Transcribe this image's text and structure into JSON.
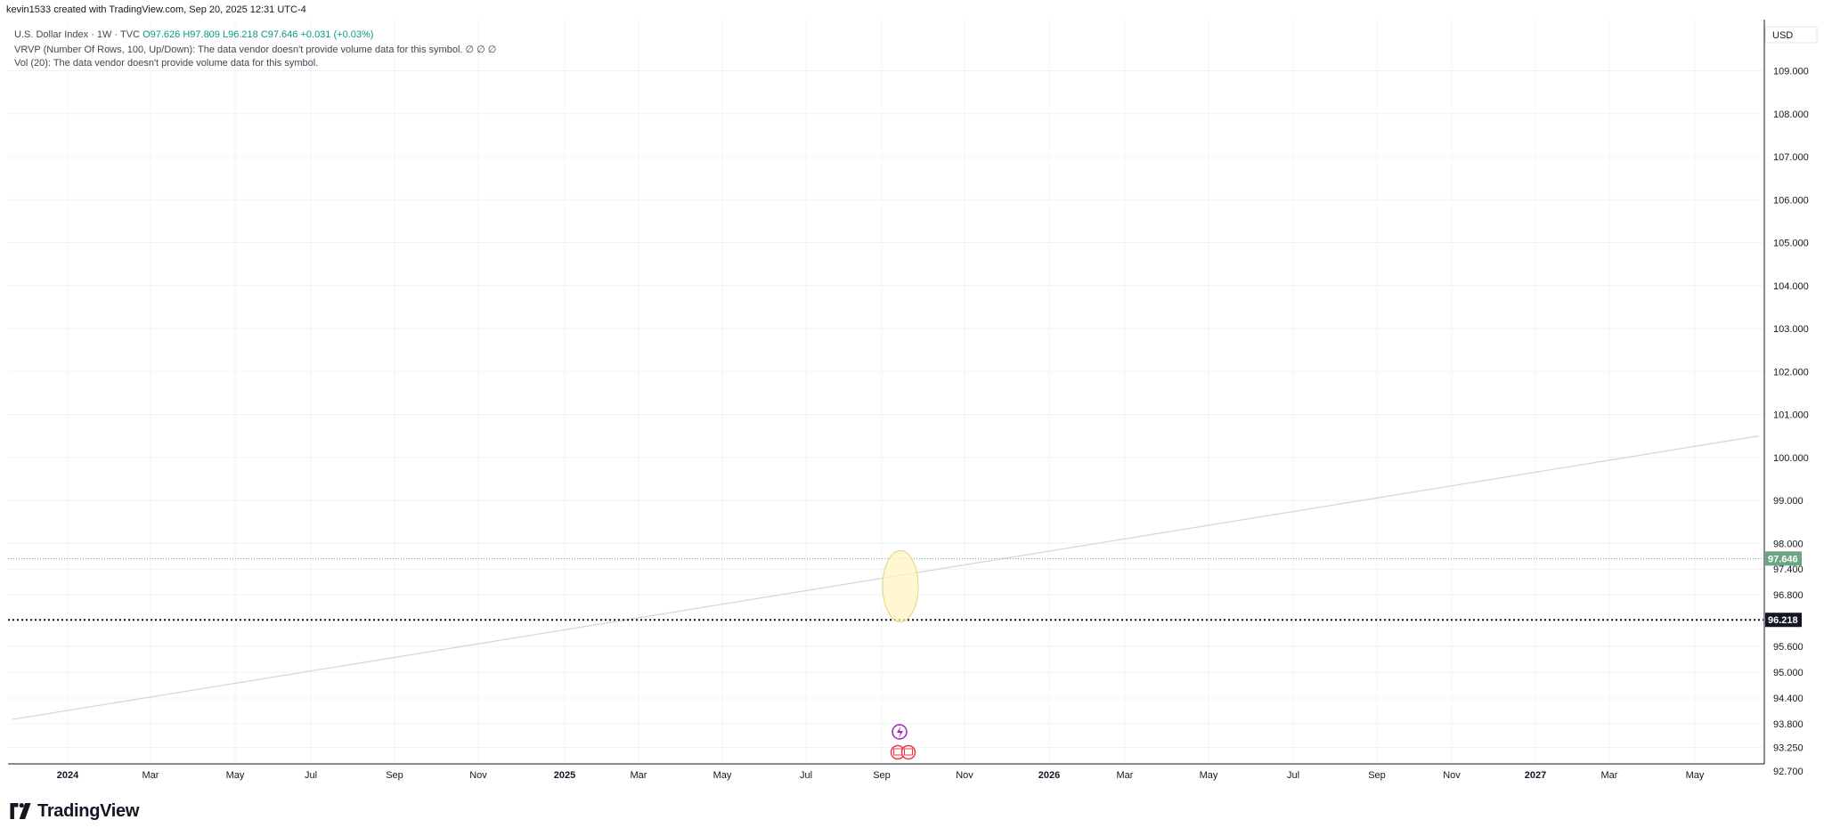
{
  "header": {
    "caption": "kevin1533 created with TradingView.com, Sep 20, 2025 12:31 UTC-4"
  },
  "legend": {
    "symbol": "U.S. Dollar Index · 1W · TVC",
    "open": "O97.626",
    "high": "H97.809",
    "low": "L96.218",
    "close": "C97.646",
    "change": "+0.031 (+0.03%)",
    "vrvp_line": "VRVP (Number Of Rows, 100, Up/Down): The data vendor doesn't provide volume data for this symbol.",
    "vrvp_icons": "∅ ∅ ∅",
    "vol_line": "Vol (20): The data vendor doesn't provide volume data for this symbol."
  },
  "brand": {
    "wordmark": "TradingView"
  },
  "colors": {
    "up": "#6ba583",
    "down": "#d75442",
    "grid": "#f0f3fa",
    "trendline": "#d1d4dc",
    "last_price": "#6ba583",
    "low_line": "#131722",
    "highlight": "#fff3bf",
    "highlight_stroke": "#e3d27a",
    "event_purple": "#9c27b0",
    "event_flag_red": "#f23645"
  },
  "chart_data": {
    "type": "candlestick",
    "title": "U.S. Dollar Index · 1W · TVC",
    "currency_label": "USD",
    "y_ticks": [
      "109.000",
      "108.000",
      "107.000",
      "106.000",
      "105.000",
      "104.000",
      "103.000",
      "102.000",
      "101.000",
      "100.000",
      "99.000",
      "98.000",
      "97.400",
      "96.800",
      "95.600",
      "95.000",
      "94.400",
      "93.800",
      "93.250",
      "92.700"
    ],
    "x_ticks": [
      {
        "label": "2024",
        "bold": true
      },
      {
        "label": "Mar",
        "bold": false
      },
      {
        "label": "May",
        "bold": false
      },
      {
        "label": "Jul",
        "bold": false
      },
      {
        "label": "Sep",
        "bold": false
      },
      {
        "label": "Nov",
        "bold": false
      },
      {
        "label": "2025",
        "bold": true
      },
      {
        "label": "Mar",
        "bold": false
      },
      {
        "label": "May",
        "bold": false
      },
      {
        "label": "Jul",
        "bold": false
      },
      {
        "label": "Sep",
        "bold": false
      },
      {
        "label": "Nov",
        "bold": false
      },
      {
        "label": "2026",
        "bold": true
      },
      {
        "label": "Mar",
        "bold": false
      },
      {
        "label": "May",
        "bold": false
      },
      {
        "label": "Jul",
        "bold": false
      },
      {
        "label": "Sep",
        "bold": false
      },
      {
        "label": "Nov",
        "bold": false
      },
      {
        "label": "2027",
        "bold": true
      },
      {
        "label": "Mar",
        "bold": false
      },
      {
        "label": "May",
        "bold": false
      }
    ],
    "last_price": 97.646,
    "last_price_label": "97.646",
    "low_line": 96.218,
    "low_line_label": "96.218",
    "trendline": {
      "from": {
        "week": 0,
        "price": 93.9
      },
      "to": {
        "week": 195,
        "price": 100.5
      }
    }
  }
}
